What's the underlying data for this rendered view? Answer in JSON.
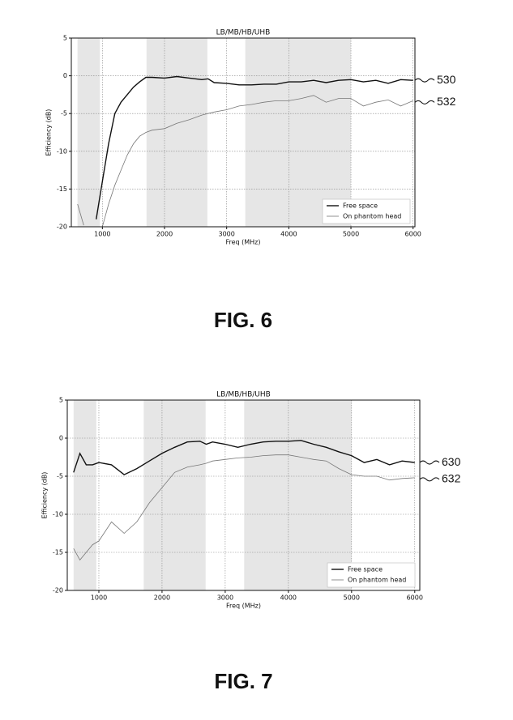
{
  "chart_data": [
    {
      "type": "line",
      "title": "LB/MB/HB/UHB",
      "x_label": "Freq (MHz)",
      "y_label": "Efficiency (dB)",
      "caption": "FIG. 6",
      "x": [
        600,
        700,
        800,
        900,
        1000,
        1100,
        1200,
        1300,
        1400,
        1500,
        1600,
        1700,
        1800,
        2000,
        2200,
        2400,
        2600,
        2700,
        2800,
        3000,
        3200,
        3400,
        3600,
        3800,
        4000,
        4200,
        4400,
        4600,
        4800,
        5000,
        5200,
        5400,
        5600,
        5800,
        6000
      ],
      "series": [
        {
          "name": "Free space",
          "reference": "530",
          "color": "#111111",
          "width": 1.4,
          "values": [
            null,
            null,
            null,
            -19,
            -14,
            -9,
            -5,
            -3.5,
            -2.5,
            -1.5,
            -0.8,
            -0.2,
            -0.2,
            -0.3,
            -0.1,
            -0.3,
            -0.5,
            -0.4,
            -0.9,
            -1.0,
            -1.2,
            -1.2,
            -1.1,
            -1.1,
            -0.8,
            -0.8,
            -0.6,
            -0.9,
            -0.6,
            -0.5,
            -0.8,
            -0.6,
            -1.0,
            -0.5,
            -0.6
          ]
        },
        {
          "name": "On phantom head",
          "reference": "532",
          "color": "#777777",
          "width": 0.8,
          "values": [
            -17,
            -19.8,
            null,
            null,
            -20,
            -17,
            -14.5,
            -12.5,
            -10.5,
            -9,
            -8,
            -7.5,
            -7.2,
            -7,
            -6.3,
            -5.8,
            -5.2,
            -5.0,
            -4.8,
            -4.5,
            -4.0,
            -3.8,
            -3.5,
            -3.3,
            -3.3,
            -3.0,
            -2.6,
            -3.5,
            -3.0,
            -3.0,
            -4.0,
            -3.5,
            -3.2,
            -4.0,
            -3.3
          ]
        }
      ],
      "bands": [
        [
          600,
          960
        ],
        [
          1710,
          2690
        ],
        [
          3300,
          5000
        ]
      ],
      "xlim": [
        500,
        6030
      ],
      "ylim": [
        -20,
        5
      ],
      "xticks": [
        1000,
        2000,
        3000,
        4000,
        5000,
        6000
      ],
      "yticks": [
        5,
        0,
        -5,
        -10,
        -15,
        -20
      ],
      "grid": true,
      "legend": "lower right"
    },
    {
      "type": "line",
      "title": "LB/MB/HB/UHB",
      "x_label": "Freq (MHz)",
      "y_label": "Efficiency (dB)",
      "caption": "FIG. 7",
      "x": [
        600,
        700,
        800,
        900,
        1000,
        1200,
        1400,
        1600,
        1800,
        2000,
        2200,
        2400,
        2600,
        2700,
        2800,
        3000,
        3200,
        3400,
        3600,
        3800,
        4000,
        4200,
        4400,
        4600,
        4800,
        5000,
        5200,
        5400,
        5600,
        5800,
        6000
      ],
      "series": [
        {
          "name": "Free space",
          "reference": "630",
          "color": "#111111",
          "width": 1.4,
          "values": [
            -4.5,
            -2,
            -3.5,
            -3.5,
            -3.2,
            -3.5,
            -4.8,
            -4,
            -3,
            -2,
            -1.2,
            -0.5,
            -0.4,
            -0.8,
            -0.5,
            -0.8,
            -1.2,
            -0.8,
            -0.5,
            -0.4,
            -0.4,
            -0.3,
            -0.8,
            -1.2,
            -1.8,
            -2.3,
            -3.2,
            -2.8,
            -3.5,
            -3.0,
            -3.2
          ]
        },
        {
          "name": "On phantom head",
          "reference": "632",
          "color": "#777777",
          "width": 0.8,
          "values": [
            -14.5,
            -16,
            -15,
            -14,
            -13.5,
            -11,
            -12.5,
            -11,
            -8.5,
            -6.5,
            -4.5,
            -3.8,
            -3.5,
            -3.3,
            -3.0,
            -2.8,
            -2.6,
            -2.5,
            -2.3,
            -2.2,
            -2.2,
            -2.5,
            -2.8,
            -3.0,
            -4.0,
            -4.8,
            -5.0,
            -5.0,
            -5.5,
            -5.3,
            -5.2
          ]
        }
      ],
      "bands": [
        [
          600,
          960
        ],
        [
          1710,
          2690
        ],
        [
          3300,
          5000
        ]
      ],
      "xlim": [
        500,
        6080
      ],
      "ylim": [
        -20,
        5
      ],
      "xticks": [
        1000,
        2000,
        3000,
        4000,
        5000,
        6000
      ],
      "yticks": [
        5,
        0,
        -5,
        -10,
        -15,
        -20
      ],
      "grid": true,
      "legend": "lower right"
    }
  ]
}
